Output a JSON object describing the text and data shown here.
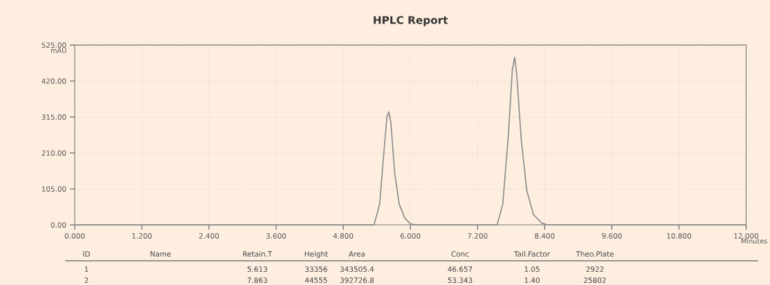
{
  "chart_data": {
    "type": "line",
    "title": "HPLC Report",
    "xlabel": "Minutes",
    "ylabel": "mAU",
    "x": [
      0,
      5.35,
      5.45,
      5.52,
      5.58,
      5.613,
      5.65,
      5.72,
      5.8,
      5.9,
      6.0,
      6.1,
      7.55,
      7.65,
      7.75,
      7.82,
      7.863,
      7.9,
      7.98,
      8.08,
      8.2,
      8.35,
      8.45,
      12
    ],
    "series": [
      {
        "color": "#8c8c8c",
        "values": [
          0,
          0,
          60,
          200,
          315,
          330,
          300,
          150,
          60,
          20,
          3,
          0,
          0,
          60,
          260,
          450,
          489,
          440,
          250,
          100,
          30,
          5,
          0,
          0
        ]
      }
    ],
    "xlim": [
      0,
      12
    ],
    "ylim": [
      0,
      525
    ],
    "xticks": [
      {
        "value": 0,
        "label": "0.000"
      },
      {
        "value": 1.2,
        "label": "1.200"
      },
      {
        "value": 2.4,
        "label": "2.400"
      },
      {
        "value": 3.6,
        "label": "3.600"
      },
      {
        "value": 4.8,
        "label": "4.800"
      },
      {
        "value": 6,
        "label": "6.000"
      },
      {
        "value": 7.2,
        "label": "7.200"
      },
      {
        "value": 8.4,
        "label": "8.400"
      },
      {
        "value": 9.6,
        "label": "9.600"
      },
      {
        "value": 10.8,
        "label": "10.800"
      },
      {
        "value": 12,
        "label": "12.000"
      }
    ],
    "yticks": [
      {
        "value": 0,
        "label": "0.00"
      },
      {
        "value": 105,
        "label": "105.00"
      },
      {
        "value": 210,
        "label": "210.00"
      },
      {
        "value": 315,
        "label": "315.00"
      },
      {
        "value": 420,
        "label": "420.00"
      },
      {
        "value": 525,
        "label": "525.00"
      }
    ],
    "grid": true,
    "marker": "none",
    "line_style": "solid",
    "annotations": [
      "ID\tName\tRetain.T\tHeight\tArea\tConc\tTail.Factor\tTheo.Plate",
      "1\t\t5.613\t33356\t343505.4\t46.657\t1.05\t2922",
      "2\t\t7.863\t44555\t392726.8\t53.343\t1.40\t25802"
    ]
  }
}
